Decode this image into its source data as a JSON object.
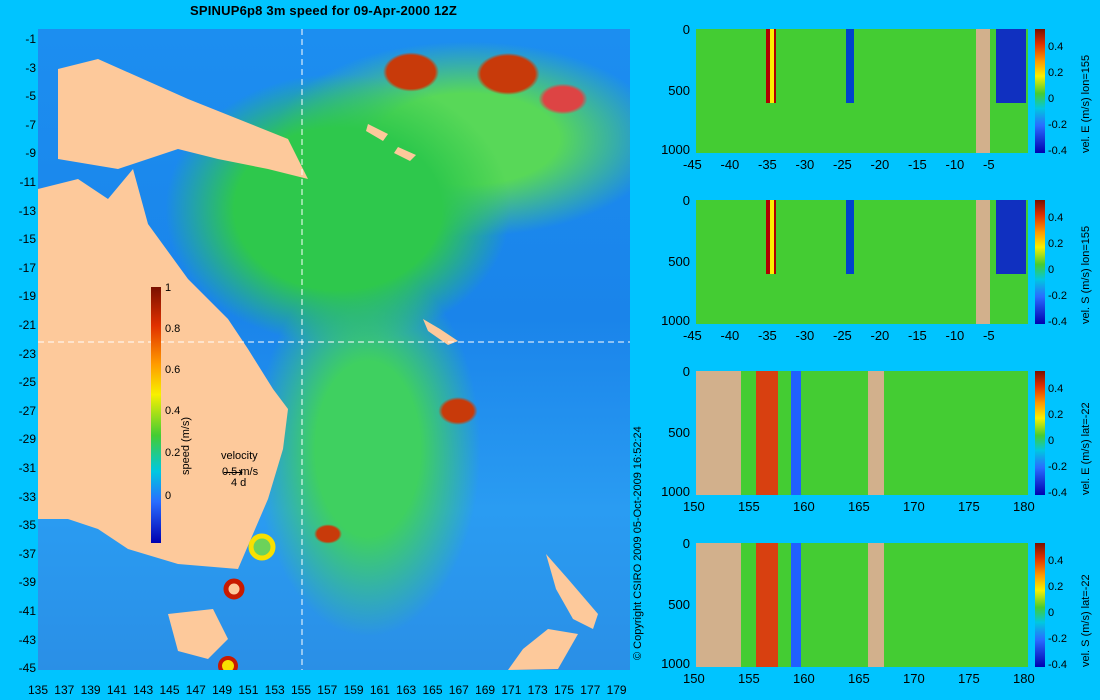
{
  "title": "SPINUP6p8 3m speed for 09-Apr-2000 12Z",
  "map": {
    "lat_labels": [
      "-1",
      "-3",
      "-5",
      "-7",
      "-9",
      "-11",
      "-13",
      "-15",
      "-17",
      "-19",
      "-21",
      "-23",
      "-25",
      "-27",
      "-29",
      "-31",
      "-33",
      "-35",
      "-37",
      "-39",
      "-41",
      "-43",
      "-45"
    ],
    "lon_labels": [
      "135",
      "137",
      "139",
      "141",
      "143",
      "145",
      "147",
      "149",
      "151",
      "153",
      "155",
      "157",
      "159",
      "161",
      "163",
      "165",
      "167",
      "169",
      "171",
      "173",
      "175",
      "177",
      "179"
    ],
    "colorbar": {
      "label": "speed (m/s)",
      "ticks": [
        "1",
        "0.8",
        "0.6",
        "0.4",
        "0.2",
        "0"
      ]
    },
    "velocity_legend": {
      "title": "velocity",
      "speed": "0.5 m/s",
      "scale": "4 d"
    },
    "colors": {
      "land": "#fdc99b",
      "background": "#00c4ff",
      "guide_line": "#ffffff"
    }
  },
  "copyright": "© Copyright CSIRO 2009   05-Oct-2009 16:52:24",
  "panels": [
    {
      "label": "vel. E (m/s) lon=155",
      "x_ticks": [
        "-45",
        "-40",
        "-35",
        "-30",
        "-25",
        "-20",
        "-15",
        "-10",
        "-5"
      ],
      "y_ticks": [
        "0",
        "500",
        "1000"
      ],
      "cbar_ticks": [
        "0.4",
        "0.2",
        "0",
        "-0.2",
        "-0.4"
      ]
    },
    {
      "label": "vel. S (m/s) lon=155",
      "x_ticks": [
        "-45",
        "-40",
        "-35",
        "-30",
        "-25",
        "-20",
        "-15",
        "-10",
        "-5"
      ],
      "y_ticks": [
        "0",
        "500",
        "1000"
      ],
      "cbar_ticks": [
        "0.4",
        "0.2",
        "0",
        "-0.2",
        "-0.4"
      ]
    },
    {
      "label": "vel. E (m/s) lat=-22",
      "x_ticks": [
        "150",
        "155",
        "160",
        "165",
        "170",
        "175",
        "180"
      ],
      "y_ticks": [
        "0",
        "500",
        "1000"
      ],
      "cbar_ticks": [
        "0.4",
        "0.2",
        "0",
        "-0.2",
        "-0.4"
      ]
    },
    {
      "label": "vel. S (m/s) lat=-22",
      "x_ticks": [
        "150",
        "155",
        "160",
        "165",
        "170",
        "175",
        "180"
      ],
      "y_ticks": [
        "0",
        "500",
        "1000"
      ],
      "cbar_ticks": [
        "0.4",
        "0.2",
        "0",
        "-0.2",
        "-0.4"
      ]
    }
  ]
}
